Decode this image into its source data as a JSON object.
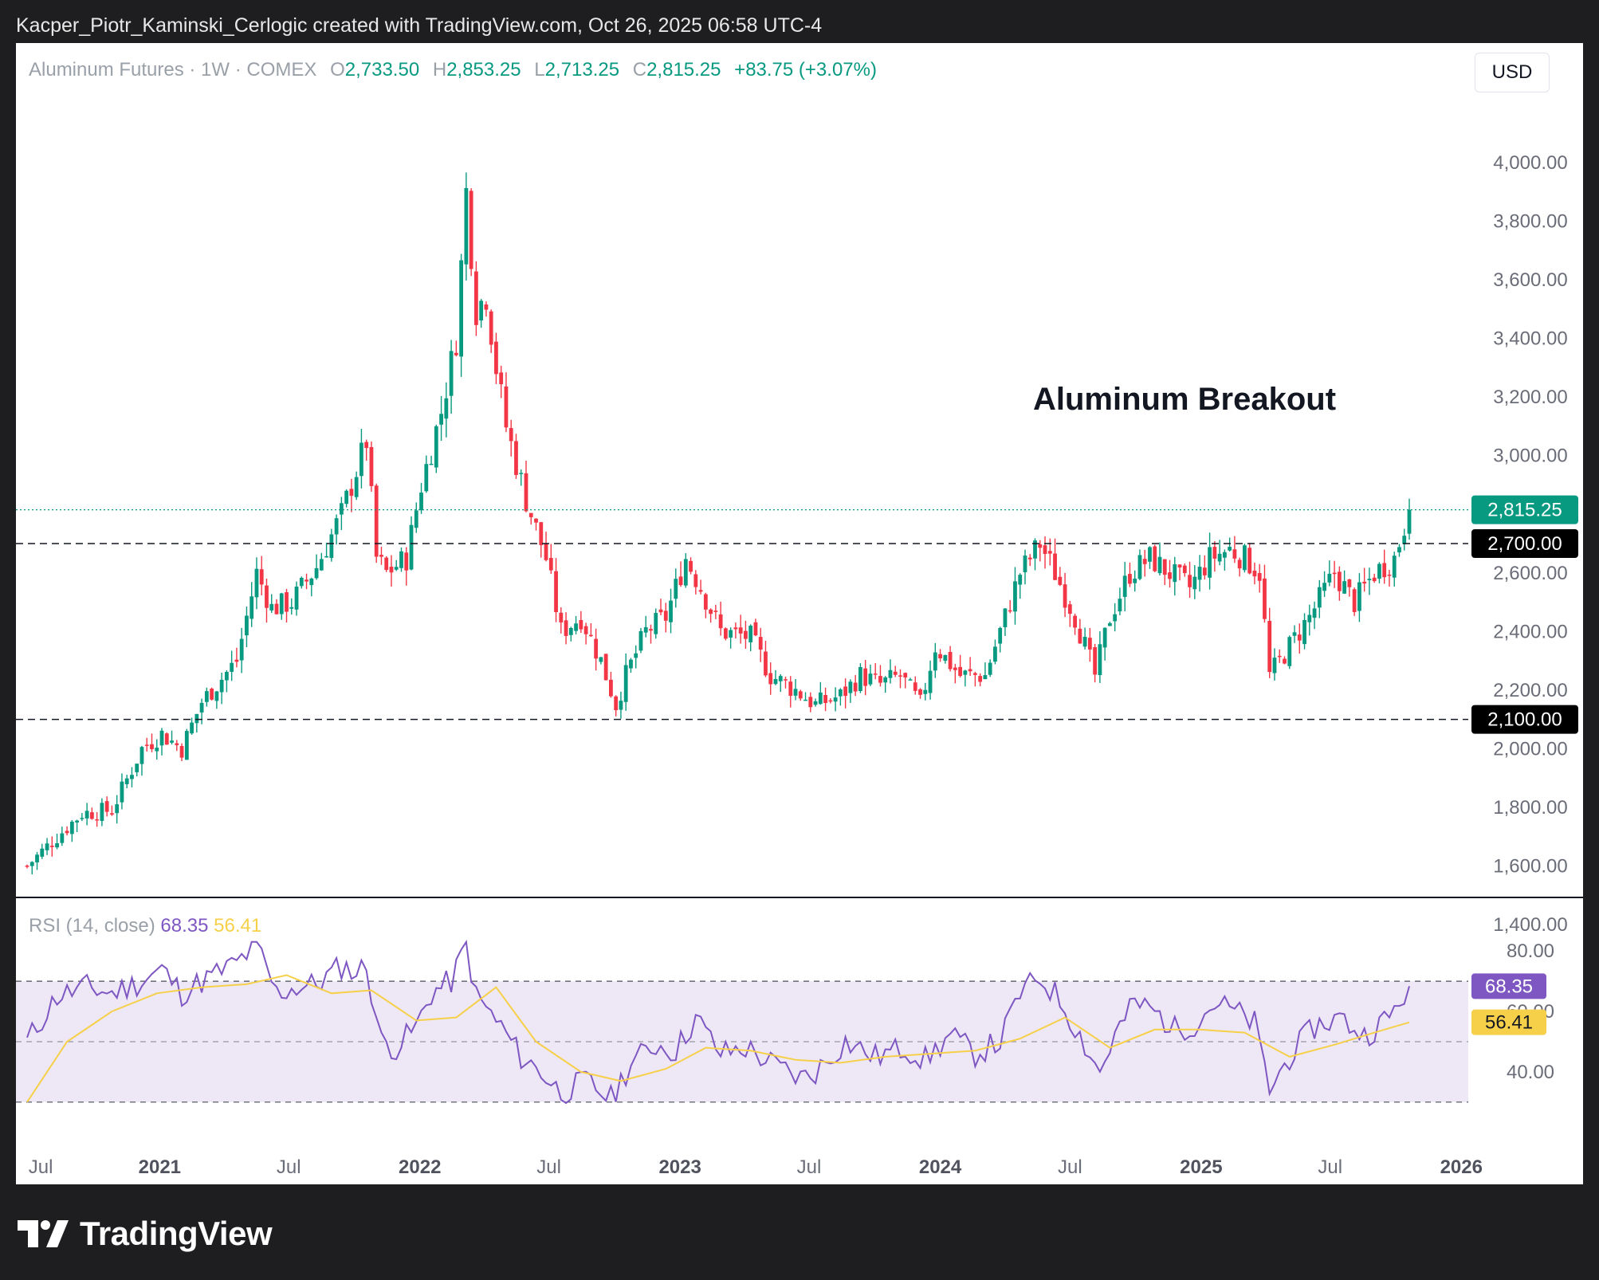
{
  "header": {
    "caption": "Kacper_Piotr_Kaminski_Cerlogic created with TradingView.com, Oct 26, 2025 06:58 UTC-4"
  },
  "legend": {
    "symbol": "Aluminum Futures · 1W · COMEX",
    "o_label": "O",
    "o_value": "2,733.50",
    "h_label": "H",
    "h_value": "2,853.25",
    "l_label": "L",
    "l_value": "2,713.25",
    "c_label": "C",
    "c_value": "2,815.25",
    "change": "+83.75 (+3.07%)"
  },
  "currency": "USD",
  "rsi_legend": {
    "label": "RSI (14, close)",
    "rsi_value": "68.35",
    "ma_value": "56.41"
  },
  "brand": {
    "name": "TradingView"
  },
  "colors": {
    "up": "#089981",
    "down": "#f23645",
    "rsi_line": "#7e57c2",
    "rsi_ma": "#f7d04a",
    "rsi_band": "#ede7f6",
    "price_line": "#089981"
  },
  "chart_data": [
    {
      "type": "candlestick",
      "annotation": "Aluminum Breakout",
      "ylim": [
        1400,
        4000
      ],
      "y_ticks": [
        "4,000.00",
        "3,800.00",
        "3,600.00",
        "3,400.00",
        "3,200.00",
        "3,000.00",
        "2,600.00",
        "2,400.00",
        "2,200.00",
        "2,000.00",
        "1,800.00",
        "1,600.00",
        "1,400.00"
      ],
      "x_labels": [
        "Jul",
        "2021",
        "Jul",
        "2022",
        "Jul",
        "2023",
        "Jul",
        "2024",
        "Jul",
        "2025",
        "Jul",
        "2026"
      ],
      "horizontal_levels": [
        {
          "value": 2700,
          "label": "2,700.00",
          "style": "dashed"
        },
        {
          "value": 2100,
          "label": "2,100.00",
          "style": "dashed"
        }
      ],
      "last_price": {
        "value": 2815.25,
        "label": "2,815.25"
      },
      "close_path": [
        [
          "2020-06-29",
          1600
        ],
        [
          "2020-08-10",
          1700
        ],
        [
          "2020-09-14",
          1780
        ],
        [
          "2020-10-26",
          1790
        ],
        [
          "2020-12-07",
          2000
        ],
        [
          "2021-01-04",
          2050
        ],
        [
          "2021-02-01",
          2000
        ],
        [
          "2021-03-01",
          2160
        ],
        [
          "2021-04-19",
          2300
        ],
        [
          "2021-05-17",
          2600
        ],
        [
          "2021-06-07",
          2480
        ],
        [
          "2021-07-05",
          2500
        ],
        [
          "2021-08-09",
          2620
        ],
        [
          "2021-09-13",
          2800
        ],
        [
          "2021-10-04",
          2950
        ],
        [
          "2021-10-18",
          3050
        ],
        [
          "2021-11-01",
          2650
        ],
        [
          "2021-11-15",
          2600
        ],
        [
          "2021-12-13",
          2650
        ],
        [
          "2022-01-03",
          2900
        ],
        [
          "2022-01-31",
          3150
        ],
        [
          "2022-02-21",
          3400
        ],
        [
          "2022-03-07",
          3900
        ],
        [
          "2022-03-21",
          3500
        ],
        [
          "2022-04-04",
          3550
        ],
        [
          "2022-04-18",
          3300
        ],
        [
          "2022-05-02",
          3100
        ],
        [
          "2022-05-30",
          2850
        ],
        [
          "2022-06-27",
          2650
        ],
        [
          "2022-07-18",
          2400
        ],
        [
          "2022-08-15",
          2450
        ],
        [
          "2022-09-12",
          2300
        ],
        [
          "2022-10-03",
          2150
        ],
        [
          "2022-10-17",
          2250
        ],
        [
          "2022-11-14",
          2400
        ],
        [
          "2022-12-12",
          2450
        ],
        [
          "2023-01-09",
          2650
        ],
        [
          "2023-01-30",
          2550
        ],
        [
          "2023-02-27",
          2400
        ],
        [
          "2023-04-10",
          2380
        ],
        [
          "2023-05-08",
          2250
        ],
        [
          "2023-06-12",
          2200
        ],
        [
          "2023-07-10",
          2150
        ],
        [
          "2023-08-14",
          2180
        ],
        [
          "2023-09-11",
          2250
        ],
        [
          "2023-10-09",
          2220
        ],
        [
          "2023-11-06",
          2250
        ],
        [
          "2023-12-04",
          2150
        ],
        [
          "2023-12-25",
          2350
        ],
        [
          "2024-01-29",
          2250
        ],
        [
          "2024-03-04",
          2250
        ],
        [
          "2024-04-01",
          2450
        ],
        [
          "2024-04-22",
          2600
        ],
        [
          "2024-05-20",
          2700
        ],
        [
          "2024-06-10",
          2600
        ],
        [
          "2024-07-08",
          2450
        ],
        [
          "2024-08-05",
          2250
        ],
        [
          "2024-08-26",
          2450
        ],
        [
          "2024-09-23",
          2600
        ],
        [
          "2024-10-21",
          2650
        ],
        [
          "2024-11-18",
          2600
        ],
        [
          "2024-12-16",
          2550
        ],
        [
          "2025-01-13",
          2650
        ],
        [
          "2025-02-10",
          2680
        ],
        [
          "2025-03-03",
          2650
        ],
        [
          "2025-03-24",
          2600
        ],
        [
          "2025-04-07",
          2250
        ],
        [
          "2025-05-05",
          2350
        ],
        [
          "2025-06-02",
          2450
        ],
        [
          "2025-07-07",
          2600
        ],
        [
          "2025-08-04",
          2500
        ],
        [
          "2025-09-01",
          2600
        ],
        [
          "2025-09-29",
          2650
        ],
        [
          "2025-10-20",
          2815.25
        ]
      ]
    },
    {
      "type": "line",
      "name": "RSI (14, close)",
      "ylim": [
        26,
        84
      ],
      "y_ticks": [
        "80.00",
        "60.00",
        "40.00"
      ],
      "bands": [
        70,
        50,
        30
      ],
      "series": [
        {
          "name": "RSI",
          "points": [
            [
              "2020-06-29",
              50
            ],
            [
              "2020-08-10",
              65
            ],
            [
              "2020-09-21",
              68
            ],
            [
              "2020-10-26",
              66
            ],
            [
              "2020-12-07",
              70
            ],
            [
              "2021-01-04",
              74
            ],
            [
              "2021-02-01",
              66
            ],
            [
              "2021-03-01",
              70
            ],
            [
              "2021-04-19",
              76
            ],
            [
              "2021-05-17",
              82
            ],
            [
              "2021-06-14",
              66
            ],
            [
              "2021-07-12",
              68
            ],
            [
              "2021-08-09",
              69
            ],
            [
              "2021-09-13",
              75
            ],
            [
              "2021-10-04",
              73
            ],
            [
              "2021-10-18",
              75
            ],
            [
              "2021-11-08",
              50
            ],
            [
              "2021-11-29",
              48
            ],
            [
              "2021-12-27",
              55
            ],
            [
              "2022-01-17",
              66
            ],
            [
              "2022-02-14",
              70
            ],
            [
              "2022-03-07",
              82
            ],
            [
              "2022-03-21",
              65
            ],
            [
              "2022-04-25",
              55
            ],
            [
              "2022-05-23",
              45
            ],
            [
              "2022-06-20",
              40
            ],
            [
              "2022-07-18",
              33
            ],
            [
              "2022-08-22",
              37
            ],
            [
              "2022-09-26",
              31
            ],
            [
              "2022-10-24",
              43
            ],
            [
              "2022-11-28",
              49
            ],
            [
              "2022-12-26",
              47
            ],
            [
              "2023-01-23",
              58
            ],
            [
              "2023-02-27",
              46
            ],
            [
              "2023-04-03",
              48
            ],
            [
              "2023-05-15",
              42
            ],
            [
              "2023-06-19",
              38
            ],
            [
              "2023-07-10",
              40
            ],
            [
              "2023-08-21",
              50
            ],
            [
              "2023-10-02",
              45
            ],
            [
              "2023-11-13",
              48
            ],
            [
              "2023-12-11",
              44
            ],
            [
              "2024-01-15",
              52
            ],
            [
              "2024-02-19",
              46
            ],
            [
              "2024-03-25",
              50
            ],
            [
              "2024-04-22",
              66
            ],
            [
              "2024-05-20",
              71
            ],
            [
              "2024-06-17",
              64
            ],
            [
              "2024-07-15",
              52
            ],
            [
              "2024-08-12",
              40
            ],
            [
              "2024-09-02",
              52
            ],
            [
              "2024-09-30",
              63
            ],
            [
              "2024-10-28",
              60
            ],
            [
              "2024-11-25",
              54
            ],
            [
              "2024-12-23",
              56
            ],
            [
              "2025-01-20",
              63
            ],
            [
              "2025-02-17",
              60
            ],
            [
              "2025-03-17",
              56
            ],
            [
              "2025-04-07",
              34
            ],
            [
              "2025-05-05",
              45
            ],
            [
              "2025-06-09",
              55
            ],
            [
              "2025-07-14",
              58
            ],
            [
              "2025-08-18",
              52
            ],
            [
              "2025-09-22",
              58
            ],
            [
              "2025-10-20",
              68.35
            ]
          ]
        },
        {
          "name": "MA",
          "points": [
            [
              "2020-06-29",
              30
            ],
            [
              "2020-08-24",
              50
            ],
            [
              "2020-10-26",
              60
            ],
            [
              "2020-12-28",
              66
            ],
            [
              "2021-03-01",
              68
            ],
            [
              "2021-05-03",
              69
            ],
            [
              "2021-06-28",
              72
            ],
            [
              "2021-08-30",
              66
            ],
            [
              "2021-10-25",
              67
            ],
            [
              "2021-12-27",
              57
            ],
            [
              "2022-02-21",
              58
            ],
            [
              "2022-04-18",
              68
            ],
            [
              "2022-06-13",
              50
            ],
            [
              "2022-08-15",
              40
            ],
            [
              "2022-10-10",
              37
            ],
            [
              "2022-12-12",
              41
            ],
            [
              "2023-02-06",
              48
            ],
            [
              "2023-04-10",
              47
            ],
            [
              "2023-06-12",
              44
            ],
            [
              "2023-08-14",
              43
            ],
            [
              "2023-10-16",
              45
            ],
            [
              "2023-12-18",
              46
            ],
            [
              "2024-02-19",
              47
            ],
            [
              "2024-04-22",
              51
            ],
            [
              "2024-06-24",
              58
            ],
            [
              "2024-08-26",
              48
            ],
            [
              "2024-10-28",
              54
            ],
            [
              "2024-12-30",
              54
            ],
            [
              "2025-03-03",
              53
            ],
            [
              "2025-05-05",
              45
            ],
            [
              "2025-07-07",
              49
            ],
            [
              "2025-09-01",
              53
            ],
            [
              "2025-10-20",
              56.41
            ]
          ]
        }
      ],
      "last_values": {
        "rsi": "68.35",
        "ma": "56.41"
      }
    }
  ]
}
